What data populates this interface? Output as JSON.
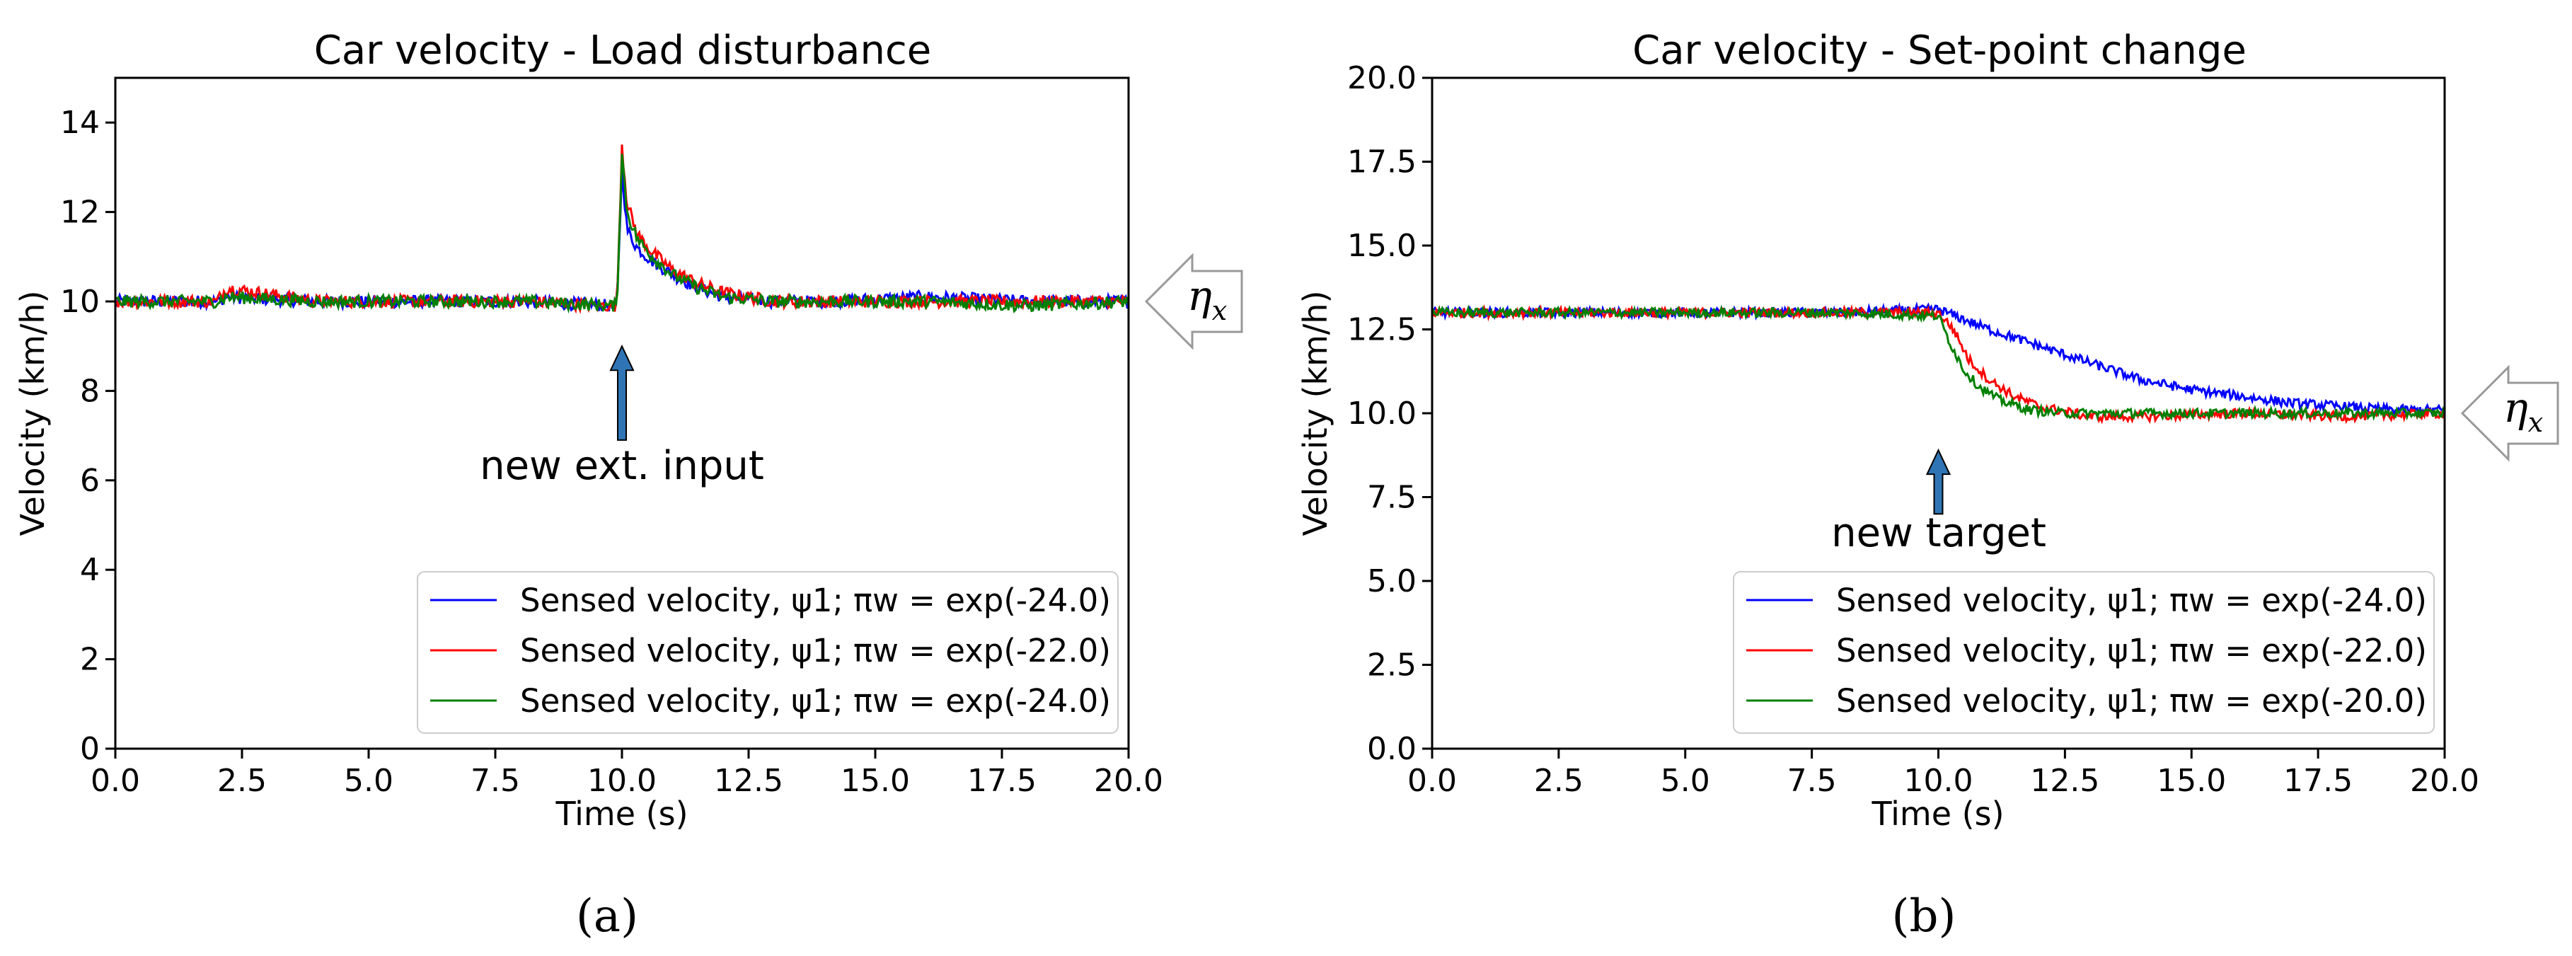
{
  "chart_data": [
    {
      "type": "line",
      "title": "Car velocity - Load disturbance",
      "xlabel": "Time (s)",
      "ylabel": "Velocity (km/h)",
      "xlim": [
        0,
        20
      ],
      "ylim": [
        0,
        15
      ],
      "xticks": [
        "0.0",
        "2.5",
        "5.0",
        "7.5",
        "10.0",
        "12.5",
        "15.0",
        "17.5",
        "20.0"
      ],
      "yticks": [
        "0",
        "2",
        "4",
        "6",
        "8",
        "10",
        "12",
        "14"
      ],
      "xtick_values": [
        0,
        2.5,
        5,
        7.5,
        10,
        12.5,
        15,
        17.5,
        20
      ],
      "ytick_values": [
        0,
        2,
        4,
        6,
        8,
        10,
        12,
        14
      ],
      "grid": false,
      "legend_position": "lower-right",
      "annotation": "new ext. input",
      "annotation_x": 10.0,
      "annotation_arrow_from": 6.9,
      "annotation_arrow_to": 9.0,
      "side_label": "ηx",
      "side_label_y": 10.0,
      "panel_label": "(a)",
      "series": [
        {
          "name": "Sensed velocity, ψ1; πw = exp(-24.0)",
          "color": "#0000ff",
          "x": [
            0,
            2,
            2.2,
            4,
            6,
            8,
            9.9,
            10.0,
            10.1,
            10.3,
            10.6,
            11,
            11.5,
            12,
            13,
            14,
            16,
            18,
            20
          ],
          "y": [
            10,
            10,
            10.1,
            10,
            10,
            10,
            9.9,
            13.0,
            11.6,
            11.2,
            10.9,
            10.6,
            10.3,
            10.1,
            10,
            10,
            10.1,
            10,
            10
          ]
        },
        {
          "name": "Sensed velocity, ψ1; πw = exp(-22.0)",
          "color": "#ff0000",
          "x": [
            0,
            2,
            2.2,
            4,
            6,
            8,
            9.9,
            10.0,
            10.1,
            10.3,
            10.6,
            11,
            11.5,
            12,
            13,
            14,
            16,
            18,
            20
          ],
          "y": [
            10,
            10,
            10.3,
            10,
            10,
            10,
            9.9,
            13.5,
            12.2,
            11.5,
            11.1,
            10.7,
            10.4,
            10.2,
            10,
            10,
            10,
            10,
            10
          ]
        },
        {
          "name": "Sensed velocity, ψ1; πw = exp(-24.0)",
          "color": "#008000",
          "x": [
            0,
            2,
            2.2,
            4,
            6,
            8,
            9.9,
            10.0,
            10.1,
            10.3,
            10.6,
            11,
            11.5,
            12,
            13,
            14,
            16,
            18,
            20
          ],
          "y": [
            10,
            10,
            10.1,
            10,
            10,
            10,
            9.9,
            13.3,
            12.0,
            11.4,
            11.0,
            10.6,
            10.3,
            10.1,
            10,
            10,
            10,
            9.9,
            10
          ]
        }
      ]
    },
    {
      "type": "line",
      "title": "Car velocity - Set-point change",
      "xlabel": "Time (s)",
      "ylabel": "Velocity (km/h)",
      "xlim": [
        0,
        20
      ],
      "ylim": [
        0,
        20
      ],
      "xticks": [
        "0.0",
        "2.5",
        "5.0",
        "7.5",
        "10.0",
        "12.5",
        "15.0",
        "17.5",
        "20.0"
      ],
      "yticks": [
        "0.0",
        "2.5",
        "5.0",
        "7.5",
        "10.0",
        "12.5",
        "15.0",
        "17.5",
        "20.0"
      ],
      "xtick_values": [
        0,
        2.5,
        5,
        7.5,
        10,
        12.5,
        15,
        17.5,
        20
      ],
      "ytick_values": [
        0,
        2.5,
        5,
        7.5,
        10,
        12.5,
        15,
        17.5,
        20
      ],
      "grid": false,
      "legend_position": "lower-right",
      "annotation": "new target",
      "annotation_x": 10.0,
      "annotation_arrow_from": 7.0,
      "annotation_arrow_to": 8.9,
      "side_label": "ηx",
      "side_label_y": 10.0,
      "panel_label": "(b)",
      "series": [
        {
          "name": "Sensed velocity, ψ1; πw = exp(-24.0)",
          "color": "#0000ff",
          "x": [
            0,
            2,
            4,
            6,
            8,
            10,
            10.5,
            11,
            12,
            13,
            14,
            15,
            16,
            17,
            18,
            19,
            20
          ],
          "y": [
            13,
            13,
            13,
            13,
            13,
            13.1,
            12.8,
            12.5,
            12.0,
            11.5,
            11.0,
            10.7,
            10.5,
            10.3,
            10.2,
            10.1,
            10.1
          ]
        },
        {
          "name": "Sensed velocity, ψ1; πw = exp(-22.0)",
          "color": "#ff0000",
          "x": [
            0,
            2,
            4,
            6,
            8,
            10,
            10.3,
            10.6,
            11,
            11.5,
            12,
            13,
            14,
            16,
            18,
            20
          ],
          "y": [
            13,
            13,
            13,
            13,
            13,
            13.0,
            12.5,
            11.6,
            11.0,
            10.5,
            10.2,
            9.9,
            9.9,
            10,
            9.9,
            10
          ]
        },
        {
          "name": "Sensed velocity, ψ1; πw = exp(-20.0)",
          "color": "#008000",
          "x": [
            0,
            2,
            4,
            6,
            8,
            10,
            10.2,
            10.5,
            10.8,
            11.2,
            11.8,
            12.5,
            14,
            16,
            18,
            20
          ],
          "y": [
            13,
            13,
            13,
            13,
            13,
            12.9,
            12.2,
            11.3,
            10.8,
            10.4,
            10.1,
            10.0,
            10,
            10,
            10,
            10
          ]
        }
      ]
    }
  ]
}
